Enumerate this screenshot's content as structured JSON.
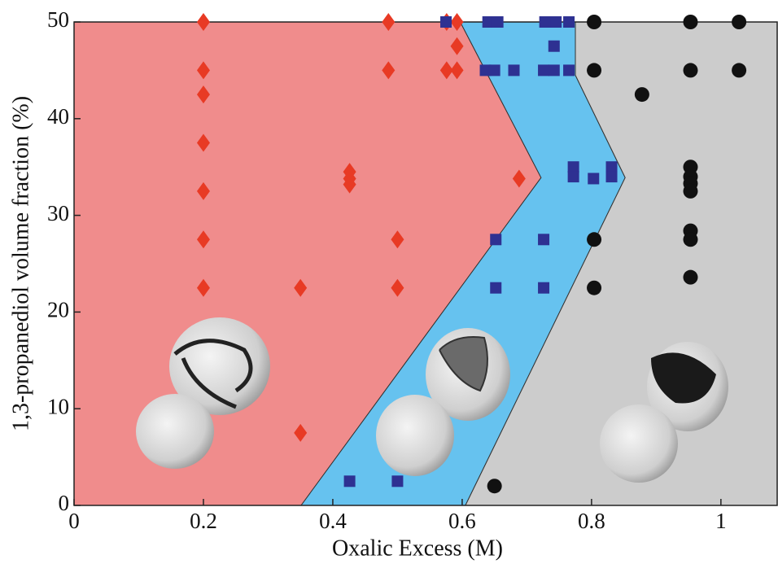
{
  "chart_data": {
    "type": "scatter",
    "x_label": "Oxalic Excess (M)",
    "y_label": "1,3-propanediol volume fraction (%)",
    "xlim": [
      0,
      1.087
    ],
    "ylim": [
      0,
      50
    ],
    "xticks": [
      0,
      0.2,
      0.4,
      0.6,
      0.8,
      1
    ],
    "yticks": [
      0,
      10,
      20,
      30,
      40,
      50
    ],
    "regions": [
      {
        "color": "#f08c8c",
        "x": [
          0,
          0,
          0.597,
          0.722,
          0.351
        ],
        "y": [
          0,
          50,
          50,
          33.9,
          0
        ]
      },
      {
        "color": "#66c2ef",
        "x": [
          0.351,
          0.722,
          0.597,
          0.775,
          0.775,
          0.852,
          0.605
        ],
        "y": [
          0,
          33.9,
          50,
          50,
          44.5,
          33.9,
          0
        ]
      },
      {
        "color": "#cccccc",
        "x": [
          0.605,
          0.852,
          0.775,
          0.775,
          1.087,
          1.087
        ],
        "y": [
          0,
          33.9,
          44.5,
          50,
          50,
          0
        ]
      }
    ],
    "series": [
      {
        "marker": "diamond",
        "color": "#e83a24",
        "x": [
          0.2,
          0.2,
          0.2,
          0.2,
          0.2,
          0.2,
          0.2,
          0.35,
          0.35,
          0.426,
          0.426,
          0.426,
          0.486,
          0.486,
          0.5,
          0.5,
          0.576,
          0.576,
          0.592,
          0.592,
          0.592,
          0.688
        ],
        "values": [
          50,
          45,
          42.5,
          37.5,
          32.5,
          27.5,
          22.5,
          22.5,
          7.5,
          34.5,
          33.8,
          33.2,
          50,
          45,
          27.5,
          22.5,
          50,
          45,
          50,
          47.5,
          45,
          33.8
        ]
      },
      {
        "marker": "square",
        "color": "#2e3192",
        "x": [
          0.426,
          0.5,
          0.575,
          0.64,
          0.655,
          0.636,
          0.65,
          0.68,
          0.728,
          0.745,
          0.765,
          0.726,
          0.742,
          0.765,
          0.742,
          0.772,
          0.772,
          0.803,
          0.831,
          0.831,
          0.652,
          0.652,
          0.726,
          0.726
        ],
        "values": [
          2.5,
          2.5,
          50,
          50,
          50,
          45,
          45,
          45,
          50,
          50,
          50,
          45,
          45,
          45,
          47.5,
          35,
          34,
          33.8,
          35,
          34,
          27.5,
          22.5,
          27.5,
          22.5
        ]
      },
      {
        "marker": "circle",
        "color": "#111111",
        "x": [
          0.804,
          0.804,
          0.804,
          0.804,
          0.878,
          0.953,
          0.953,
          0.953,
          0.953,
          0.953,
          0.953,
          0.953,
          0.953,
          0.953,
          1.028,
          1.028,
          0.65
        ],
        "values": [
          50,
          45,
          27.5,
          22.5,
          42.5,
          50,
          45,
          35,
          34,
          33.3,
          32.5,
          28.4,
          27.5,
          23.6,
          50,
          45,
          2
        ]
      }
    ]
  }
}
